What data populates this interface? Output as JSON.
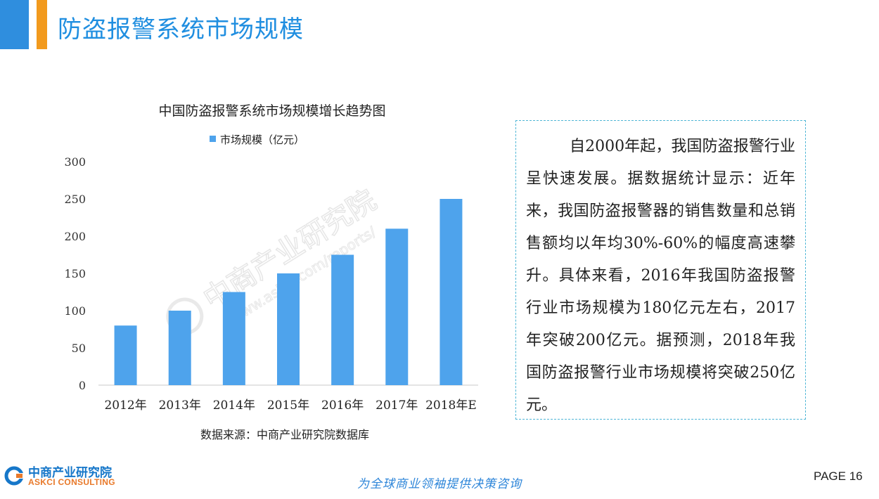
{
  "header": {
    "title": "防盗报警系统市场规模",
    "accent_blue": "#2f8ede",
    "accent_orange": "#f29a1d"
  },
  "chart_data": {
    "type": "bar",
    "title": "中国防盗报警系统市场规模增长趋势图",
    "legend_position": "top",
    "series": [
      {
        "name": "市场规模（亿元）",
        "color": "#4ea3ec",
        "values": [
          80,
          100,
          125,
          150,
          175,
          210,
          250
        ]
      }
    ],
    "categories": [
      "2012年",
      "2013年",
      "2014年",
      "2015年",
      "2016年",
      "2017年",
      "2018年E"
    ],
    "y_ticks": [
      "0",
      "50",
      "100",
      "150",
      "200",
      "250",
      "300"
    ],
    "ylim": [
      0,
      300
    ],
    "grid": false,
    "source": "数据来源：中商产业研究院数据库"
  },
  "watermark": {
    "text_cn": "中商产业研究院",
    "text_url": "www.askci.com/reports/"
  },
  "text_box": {
    "paragraph": "自2000年起，我国防盗报警行业呈快速发展。据数据统计显示：近年来，我国防盗报警器的销售数量和总销售额均以年均30%-60%的幅度高速攀升。具体来看，2016年我国防盗报警行业市场规模为180亿元左右，2017年突破200亿元。据预测，2018年我国防盗报警行业市场规模将突破250亿元。"
  },
  "footer": {
    "logo_cn": "中商产业研究院",
    "logo_en": "ASKCI CONSULTING",
    "slogan": "为全球商业领袖提供决策咨询",
    "page": "PAGE  16"
  }
}
